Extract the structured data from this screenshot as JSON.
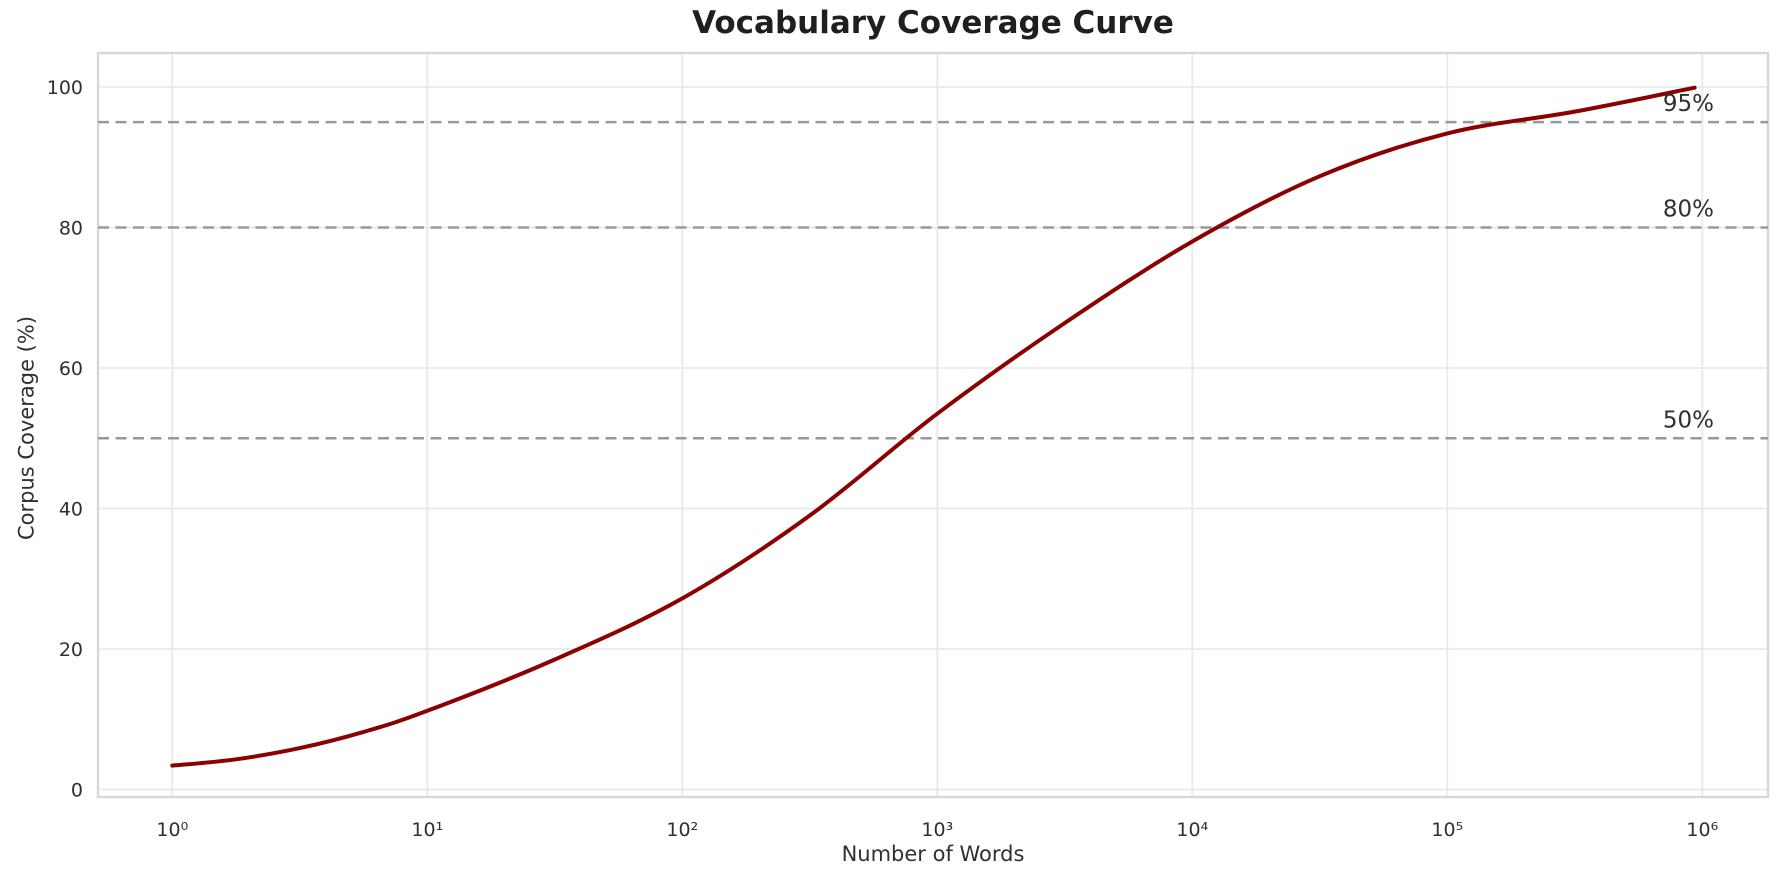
{
  "chart_data": {
    "type": "line",
    "title": "Vocabulary Coverage Curve",
    "xlabel": "Number of Words",
    "ylabel": "Corpus Coverage (%)",
    "x_scale": "log10",
    "x_unit": "log10(number of words)",
    "y_unit": "percent",
    "xlim_log10": [
      -0.29,
      6.26
    ],
    "ylim": [
      -1,
      105
    ],
    "grid": "major",
    "legend": "none",
    "x_ticks": [
      {
        "label": "10⁰",
        "log10": 0
      },
      {
        "label": "10¹",
        "log10": 1
      },
      {
        "label": "10²",
        "log10": 2
      },
      {
        "label": "10³",
        "log10": 3
      },
      {
        "label": "10⁴",
        "log10": 4
      },
      {
        "label": "10⁵",
        "log10": 5
      },
      {
        "label": "10⁶",
        "log10": 6
      }
    ],
    "y_ticks": [
      {
        "label": "0",
        "value": 0
      },
      {
        "label": "20",
        "value": 20
      },
      {
        "label": "40",
        "value": 40
      },
      {
        "label": "60",
        "value": 60
      },
      {
        "label": "80",
        "value": 80
      },
      {
        "label": "100",
        "value": 100
      }
    ],
    "series": [
      {
        "name": "vocabulary-coverage",
        "color": "#8b0000",
        "line_width": 4,
        "points": [
          [
            0,
            3.4
          ],
          [
            0.25,
            4.3
          ],
          [
            0.5,
            5.9
          ],
          [
            0.75,
            8.2
          ],
          [
            1,
            11.2
          ],
          [
            1.5,
            18.5
          ],
          [
            2,
            27.2
          ],
          [
            2.5,
            39.0
          ],
          [
            3,
            53.5
          ],
          [
            3.5,
            66.4
          ],
          [
            4,
            78.0
          ],
          [
            4.5,
            87.3
          ],
          [
            5,
            93.4
          ],
          [
            5.5,
            96.5
          ],
          [
            5.97,
            99.9
          ]
        ]
      }
    ],
    "reference_lines": [
      {
        "value": 50,
        "label": "50%"
      },
      {
        "value": 80,
        "label": "80%"
      },
      {
        "value": 95,
        "label": "95%"
      }
    ],
    "reference_style": {
      "color": "#999999",
      "width": 2.5,
      "dash": [
        11,
        6.5
      ]
    }
  },
  "colors": {
    "background": "#ffffff",
    "grid": "#e9e9e9",
    "frame": "#d7d7d7",
    "tick_text": "#303030",
    "title_text": "#1f1f1f",
    "curve": "#8b0000",
    "reference": "#999999"
  }
}
